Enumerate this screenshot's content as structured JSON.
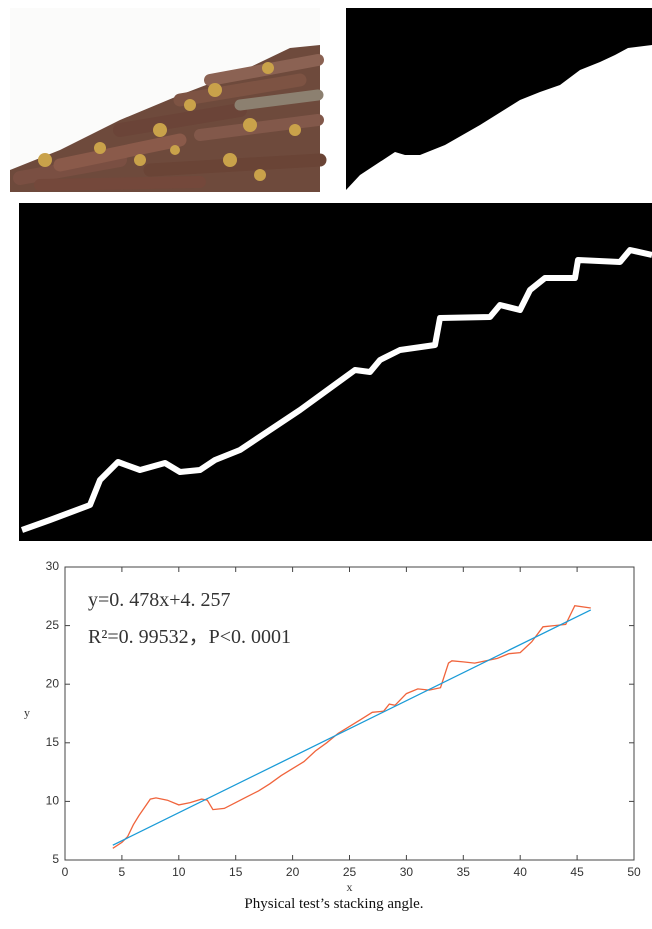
{
  "figure": {
    "caption": "Physical test’s stacking angle."
  },
  "chart_data": {
    "type": "line",
    "xlabel": "x",
    "ylabel": "y",
    "annotations": [
      "y=0. 478x+4. 257",
      "R²=0. 99532，P<0. 0001"
    ],
    "xlim": [
      0,
      50
    ],
    "xticks": [
      0,
      5,
      10,
      15,
      20,
      25,
      30,
      35,
      40,
      45,
      50
    ],
    "ylim": [
      5,
      30
    ],
    "yticks": [
      5,
      10,
      15,
      20,
      25,
      30
    ],
    "series": [
      {
        "color": "#f0643c",
        "x": [
          4.2,
          5,
          5.5,
          6,
          6.5,
          7,
          7.5,
          8,
          9,
          10,
          11,
          12,
          12.5,
          13,
          14,
          15,
          16,
          17,
          18,
          19,
          20,
          21,
          22,
          23,
          24,
          25,
          26,
          27,
          28,
          28.5,
          29,
          30,
          31,
          32,
          33,
          33.7,
          34,
          35,
          36,
          37,
          38,
          39,
          40,
          41,
          42,
          43,
          44,
          44.8,
          46.2
        ],
        "values": [
          6.0,
          6.5,
          7.0,
          8.0,
          8.8,
          9.5,
          10.2,
          10.3,
          10.1,
          9.7,
          9.9,
          10.2,
          10.1,
          9.3,
          9.4,
          9.9,
          10.4,
          10.9,
          11.5,
          12.2,
          12.8,
          13.4,
          14.3,
          15.0,
          15.8,
          16.4,
          17.0,
          17.6,
          17.7,
          18.3,
          18.2,
          19.2,
          19.6,
          19.5,
          19.7,
          21.8,
          22.0,
          21.9,
          21.8,
          22.0,
          22.2,
          22.6,
          22.7,
          23.6,
          24.9,
          25.0,
          25.1,
          26.7,
          26.5
        ]
      },
      {
        "color": "#1a9bd7",
        "x": [
          4.2,
          46.2
        ],
        "values": [
          6.26,
          26.34
        ]
      }
    ]
  }
}
